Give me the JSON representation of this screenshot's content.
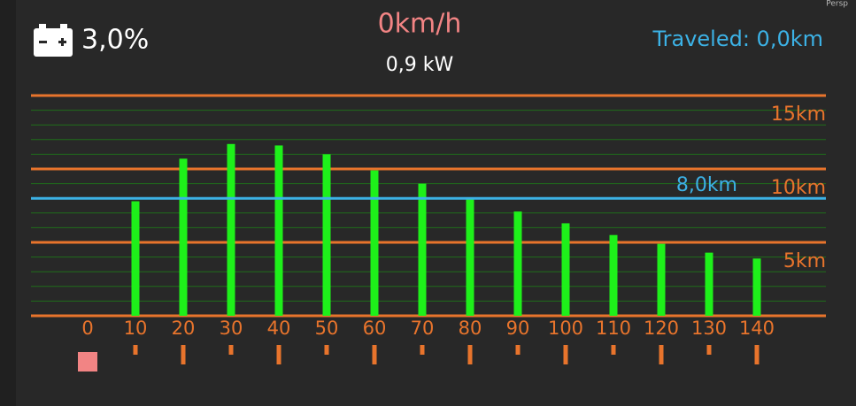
{
  "header": {
    "battery": "3,0%",
    "speed": "0km/h",
    "power": "0,9 kW",
    "traveled": "Traveled: 0,0km",
    "scene_label": "Persp"
  },
  "chart_data": {
    "type": "bar",
    "categories": [
      "0",
      "10",
      "20",
      "30",
      "40",
      "50",
      "60",
      "70",
      "80",
      "90",
      "100",
      "110",
      "120",
      "130",
      "140"
    ],
    "values": [
      0,
      7.8,
      10.7,
      11.7,
      11.6,
      11.0,
      9.9,
      9.0,
      8.0,
      7.1,
      6.3,
      5.5,
      4.9,
      4.3,
      3.9
    ],
    "color": "#1ef01a",
    "ylim": [
      0,
      15
    ],
    "yticks": [
      {
        "value": 5,
        "label": "5km"
      },
      {
        "value": 10,
        "label": "10km"
      },
      {
        "value": 15,
        "label": "15km"
      }
    ],
    "grid": true,
    "grid_color": "#e8742c",
    "minor_grid_step": 1,
    "minor_grid_color": "#1f6e1a",
    "reference_line": {
      "value": 8.0,
      "label": "8,0km",
      "color": "#3cb2e6"
    }
  }
}
